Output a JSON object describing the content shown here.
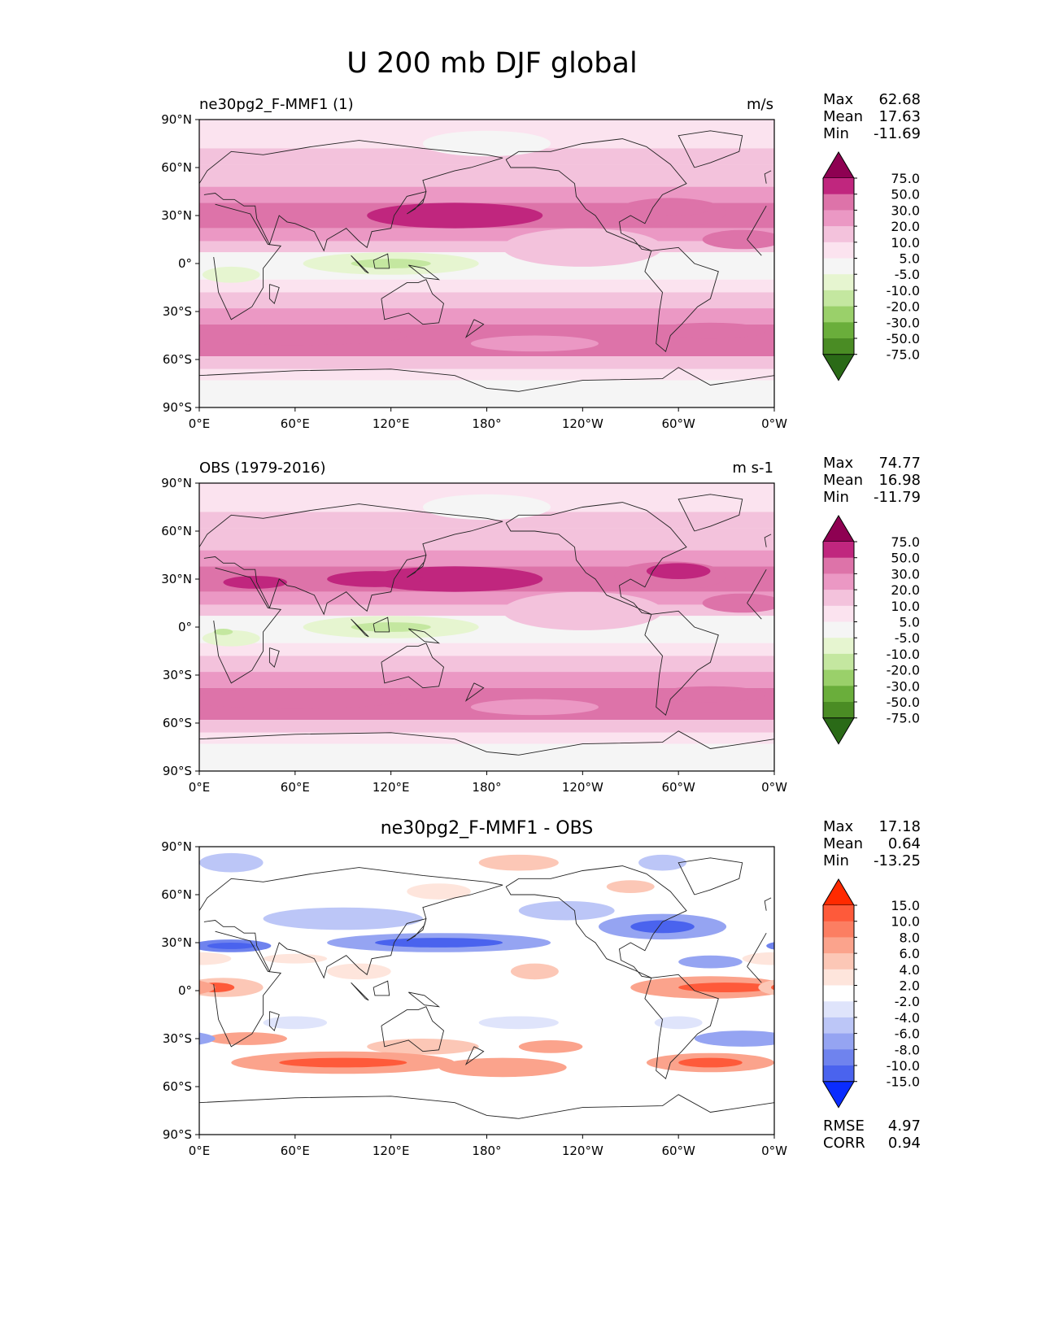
{
  "figure": {
    "title": "U 200 mb DJF global"
  },
  "panels": [
    {
      "left_title": "ne30pg2_F-MMF1 (1)",
      "center_title": "",
      "units": "m/s",
      "stats": [
        {
          "label": "Max",
          "value": "62.68"
        },
        {
          "label": "Mean",
          "value": "17.63"
        },
        {
          "label": "Min",
          "value": "-11.69"
        }
      ],
      "colorbar": {
        "labels": [
          "75.0",
          "50.0",
          "30.0",
          "20.0",
          "10.0",
          "5.0",
          "-5.0",
          "-10.0",
          "-20.0",
          "-30.0",
          "-50.0",
          "-75.0"
        ],
        "colors": [
          "#8e0152",
          "#c0267e",
          "#dd73a9",
          "#eb98c4",
          "#f3c2dc",
          "#fbe3ef",
          "#f5f5f5",
          "#e6f5d0",
          "#c4e7a0",
          "#9ad06a",
          "#6aae3b",
          "#4a8c24",
          "#2a6a17"
        ],
        "extend": "both"
      }
    },
    {
      "left_title": "OBS (1979-2016)",
      "center_title": "",
      "units": "m s-1",
      "stats": [
        {
          "label": "Max",
          "value": "74.77"
        },
        {
          "label": "Mean",
          "value": "16.98"
        },
        {
          "label": "Min",
          "value": "-11.79"
        }
      ],
      "colorbar": {
        "labels": [
          "75.0",
          "50.0",
          "30.0",
          "20.0",
          "10.0",
          "5.0",
          "-5.0",
          "-10.0",
          "-20.0",
          "-30.0",
          "-50.0",
          "-75.0"
        ],
        "colors": [
          "#8e0152",
          "#c0267e",
          "#dd73a9",
          "#eb98c4",
          "#f3c2dc",
          "#fbe3ef",
          "#f5f5f5",
          "#e6f5d0",
          "#c4e7a0",
          "#9ad06a",
          "#6aae3b",
          "#4a8c24",
          "#2a6a17"
        ],
        "extend": "both"
      }
    },
    {
      "left_title": "",
      "center_title": "ne30pg2_F-MMF1 - OBS",
      "units": "",
      "stats": [
        {
          "label": "Max",
          "value": "17.18"
        },
        {
          "label": "Mean",
          "value": "0.64"
        },
        {
          "label": "Min",
          "value": "-13.25"
        }
      ],
      "extra_stats": [
        {
          "label": "RMSE",
          "value": "4.97"
        },
        {
          "label": "CORR",
          "value": "0.94"
        }
      ],
      "colorbar": {
        "labels": [
          "15.0",
          "10.0",
          "8.0",
          "6.0",
          "4.0",
          "2.0",
          "-2.0",
          "-4.0",
          "-6.0",
          "-8.0",
          "-10.0",
          "-15.0"
        ],
        "colors": [
          "#ff2a00",
          "#fe5a3a",
          "#fc7e62",
          "#fba38c",
          "#fcc7b6",
          "#fee5dc",
          "#ffffff",
          "#dfe4fb",
          "#bcc6f7",
          "#95a4f2",
          "#6f83ee",
          "#4a63ee",
          "#0a2cff"
        ],
        "extend": "both"
      }
    }
  ],
  "axes": {
    "lat_ticks": [
      "90°N",
      "60°N",
      "30°N",
      "0°",
      "30°S",
      "60°S",
      "90°S"
    ],
    "lon_ticks": [
      "0°E",
      "60°E",
      "120°E",
      "180°",
      "120°W",
      "60°W",
      "0°W"
    ]
  },
  "chart_data": [
    {
      "type": "heatmap",
      "title": "ne30pg2_F-MMF1 (1)",
      "units": "m/s",
      "variable": "U 200 mb DJF",
      "x_range": [
        0,
        360
      ],
      "y_range": [
        -90,
        90
      ],
      "stats": {
        "max": 62.68,
        "mean": 17.63,
        "min": -11.69
      },
      "levels": [
        -75,
        -50,
        -30,
        -20,
        -10,
        -5,
        5,
        10,
        20,
        30,
        50,
        75
      ],
      "zonal_mean_profile": {
        "lat": [
          -90,
          -75,
          -60,
          -50,
          -45,
          -30,
          -15,
          0,
          15,
          30,
          45,
          60,
          75,
          90
        ],
        "u": [
          0,
          3,
          15,
          32,
          35,
          20,
          8,
          -2,
          15,
          40,
          28,
          12,
          8,
          3
        ]
      }
    },
    {
      "type": "heatmap",
      "title": "OBS (1979-2016)",
      "units": "m s-1",
      "variable": "U 200 mb DJF",
      "x_range": [
        0,
        360
      ],
      "y_range": [
        -90,
        90
      ],
      "stats": {
        "max": 74.77,
        "mean": 16.98,
        "min": -11.79
      },
      "levels": [
        -75,
        -50,
        -30,
        -20,
        -10,
        -5,
        5,
        10,
        20,
        30,
        50,
        75
      ],
      "zonal_mean_profile": {
        "lat": [
          -90,
          -75,
          -60,
          -50,
          -45,
          -30,
          -15,
          0,
          15,
          30,
          45,
          60,
          75,
          90
        ],
        "u": [
          0,
          3,
          12,
          30,
          33,
          20,
          8,
          -3,
          14,
          42,
          28,
          12,
          9,
          5
        ]
      }
    },
    {
      "type": "heatmap",
      "title": "ne30pg2_F-MMF1 - OBS",
      "units": "",
      "variable": "U 200 mb DJF difference",
      "x_range": [
        0,
        360
      ],
      "y_range": [
        -90,
        90
      ],
      "stats": {
        "max": 17.18,
        "mean": 0.64,
        "min": -13.25,
        "rmse": 4.97,
        "corr": 0.94
      },
      "levels": [
        -15,
        -10,
        -8,
        -6,
        -4,
        -2,
        2,
        4,
        6,
        8,
        10,
        15
      ]
    }
  ]
}
